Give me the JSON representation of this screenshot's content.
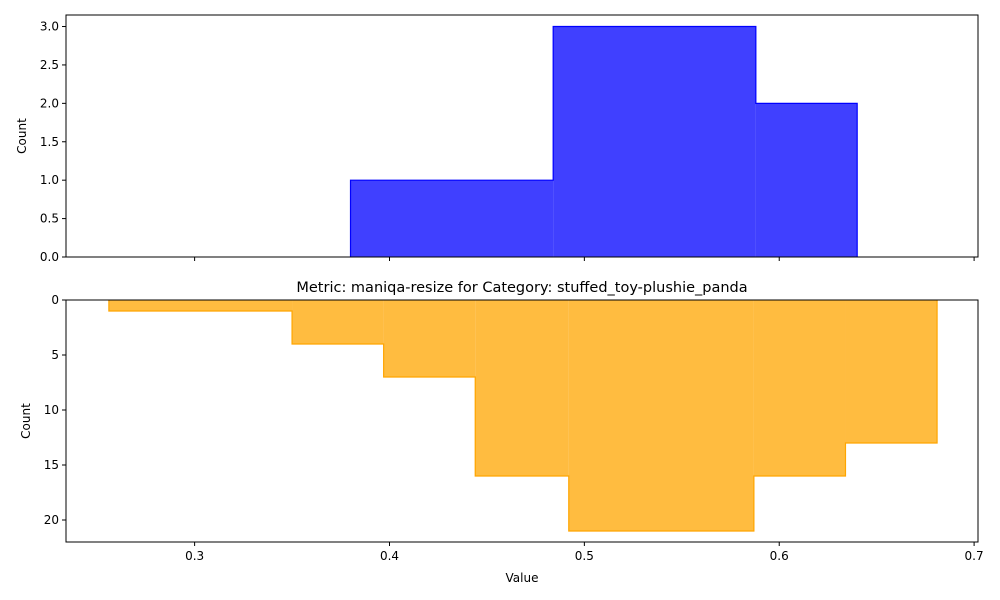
{
  "chart_data": [
    {
      "type": "histogram",
      "series": [
        {
          "name": "",
          "color": "#0000ff",
          "bins": [
            {
              "x0": 0.38,
              "x1": 0.484,
              "count": 1
            },
            {
              "x0": 0.484,
              "x1": 0.588,
              "count": 3
            },
            {
              "x0": 0.588,
              "x1": 0.64,
              "count": 2
            }
          ]
        }
      ],
      "title": "",
      "xlabel": "",
      "ylabel": "Count",
      "xlim": [
        0.234,
        0.702
      ],
      "ylim": [
        0,
        3.15
      ],
      "xticks": [
        "0.3",
        "0.4",
        "0.5",
        "0.6",
        "0.7"
      ],
      "yticks": [
        "0.0",
        "0.5",
        "1.0",
        "1.5",
        "2.0",
        "2.5",
        "3.0"
      ],
      "grid": false,
      "y_inverted": false
    },
    {
      "type": "histogram",
      "series": [
        {
          "name": "",
          "color": "#ffa500",
          "bins": [
            {
              "x0": 0.256,
              "x1": 0.35,
              "count": 1
            },
            {
              "x0": 0.35,
              "x1": 0.397,
              "count": 4
            },
            {
              "x0": 0.397,
              "x1": 0.444,
              "count": 7
            },
            {
              "x0": 0.444,
              "x1": 0.492,
              "count": 16
            },
            {
              "x0": 0.492,
              "x1": 0.587,
              "count": 21
            },
            {
              "x0": 0.587,
              "x1": 0.634,
              "count": 16
            },
            {
              "x0": 0.634,
              "x1": 0.681,
              "count": 13
            }
          ]
        }
      ],
      "title": "Metric: maniqa-resize for Category: stuffed_toy-plushie_panda",
      "xlabel": "Value",
      "ylabel": "Count",
      "xlim": [
        0.234,
        0.702
      ],
      "ylim": [
        0,
        22
      ],
      "xticks": [
        "0.3",
        "0.4",
        "0.5",
        "0.6",
        "0.7"
      ],
      "yticks": [
        "0",
        "5",
        "10",
        "15",
        "20"
      ],
      "grid": false,
      "y_inverted": true
    }
  ]
}
